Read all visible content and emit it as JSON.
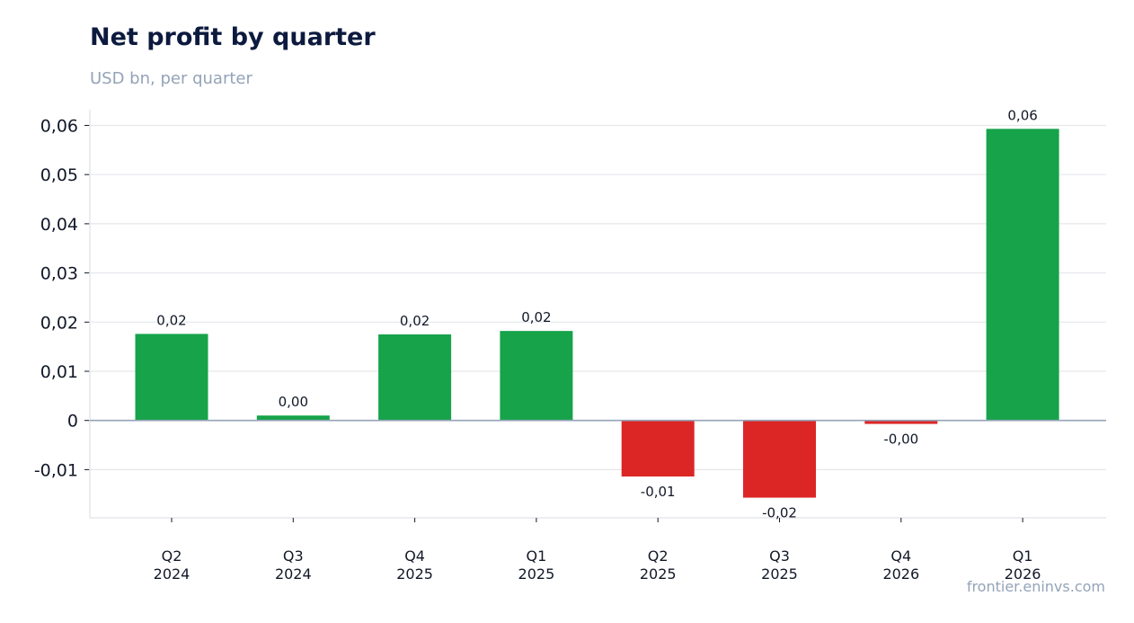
{
  "chart_data": {
    "type": "bar",
    "title": "Net profit by quarter",
    "subtitle": "USD bn, per quarter",
    "source": "frontier.eninvs.com",
    "categories": [
      [
        "Q2",
        "2024"
      ],
      [
        "Q3",
        "2024"
      ],
      [
        "Q4",
        "2025"
      ],
      [
        "Q1",
        "2025"
      ],
      [
        "Q2",
        "2025"
      ],
      [
        "Q3",
        "2025"
      ],
      [
        "Q4",
        "2026"
      ],
      [
        "Q1",
        "2026"
      ]
    ],
    "values": [
      0.0176,
      0.001,
      0.0175,
      0.0182,
      -0.0114,
      -0.0157,
      -0.0007,
      0.0593
    ],
    "value_labels": [
      "0,02",
      "0,00",
      "0,02",
      "0,02",
      "-0,01",
      "-0,02",
      "-0,00",
      "0,06"
    ],
    "ylim": [
      -0.0198,
      0.0632
    ],
    "yticks": [
      -0.01,
      0,
      0.01,
      0.02,
      0.03,
      0.04,
      0.05,
      0.06
    ],
    "ytick_labels": [
      "-0,01",
      "0",
      "0,01",
      "0,02",
      "0,03",
      "0,04",
      "0,05",
      "0,06"
    ],
    "grid": true,
    "legend": "none",
    "colors": {
      "positive": "#16a34a",
      "negative": "#dc2626",
      "grid": "#e5e7eb",
      "zero_line": "#94a3b8",
      "axis": "#e5e7eb"
    }
  }
}
